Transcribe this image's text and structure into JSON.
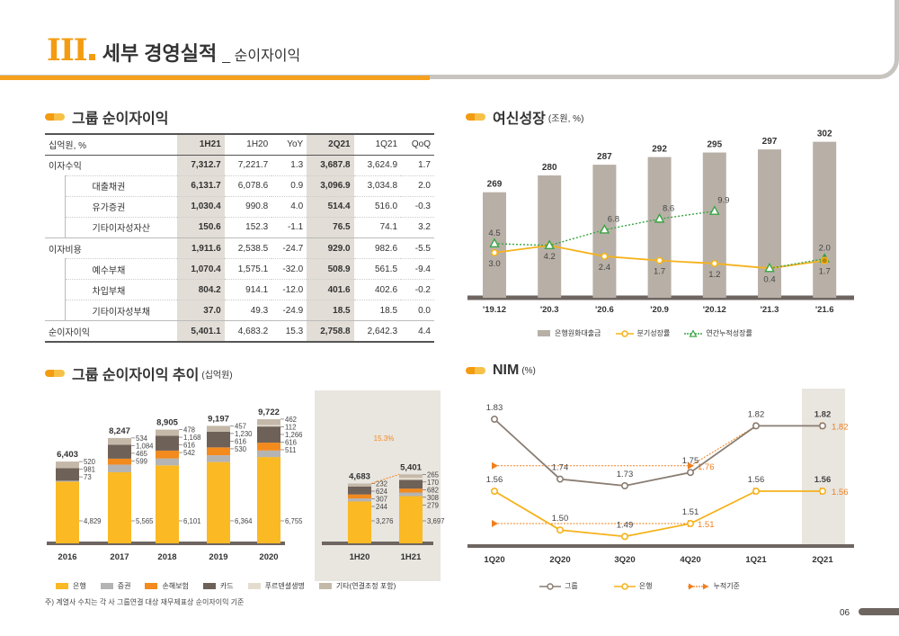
{
  "header": {
    "roman": "III",
    "title": "세부 경영실적",
    "subtitle": "_ 순이자이익"
  },
  "sections": {
    "group_nii": {
      "title": "그룹 순이자이익"
    },
    "loan_growth": {
      "title": "여신성장",
      "unit": "(조원, %)"
    },
    "nii_trend": {
      "title": "그룹 순이자이익 추이",
      "unit": "(십억원)"
    },
    "nim": {
      "title": "NIM",
      "unit": "(%)"
    }
  },
  "nii_table": {
    "unit": "십억원, %",
    "columns": [
      "1H21",
      "1H20",
      "YoY",
      "2Q21",
      "1Q21",
      "QoQ"
    ],
    "rows": [
      {
        "label": "이자수익",
        "level": 0,
        "values": [
          "7,312.7",
          "7,221.7",
          "1.3",
          "3,687.8",
          "3,624.9",
          "1.7"
        ]
      },
      {
        "label": "대출채권",
        "level": 1,
        "values": [
          "6,131.7",
          "6,078.6",
          "0.9",
          "3,096.9",
          "3,034.8",
          "2.0"
        ]
      },
      {
        "label": "유가증권",
        "level": 1,
        "values": [
          "1,030.4",
          "990.8",
          "4.0",
          "514.4",
          "516.0",
          "-0.3"
        ]
      },
      {
        "label": "기타이자성자산",
        "level": 1,
        "values": [
          "150.6",
          "152.3",
          "-1.1",
          "76.5",
          "74.1",
          "3.2"
        ]
      },
      {
        "label": "이자비용",
        "level": 0,
        "values": [
          "1,911.6",
          "2,538.5",
          "-24.7",
          "929.0",
          "982.6",
          "-5.5"
        ]
      },
      {
        "label": "예수부채",
        "level": 1,
        "values": [
          "1,070.4",
          "1,575.1",
          "-32.0",
          "508.9",
          "561.5",
          "-9.4"
        ]
      },
      {
        "label": "차입부채",
        "level": 1,
        "values": [
          "804.2",
          "914.1",
          "-12.0",
          "401.6",
          "402.6",
          "-0.2"
        ]
      },
      {
        "label": "기타이자성부채",
        "level": 1,
        "values": [
          "37.0",
          "49.3",
          "-24.9",
          "18.5",
          "18.5",
          "0.0"
        ]
      },
      {
        "label": "순이자이익",
        "level": 0,
        "values": [
          "5,401.1",
          "4,683.2",
          "15.3",
          "2,758.8",
          "2,642.3",
          "4.4"
        ]
      }
    ]
  },
  "chart_data": [
    {
      "id": "loan_growth",
      "type": "bar",
      "categories": [
        "'19.12",
        "'20.3",
        "'20.6",
        "'20.9",
        "'20.12",
        "'21.3",
        "'21.6"
      ],
      "series": [
        {
          "name": "은행원화대출금",
          "type": "bar",
          "color": "#b8b0a7",
          "values": [
            269,
            280,
            287,
            292,
            295,
            297,
            302
          ]
        },
        {
          "name": "분기성장률",
          "type": "line",
          "color": "#f5b21b",
          "values": [
            3.0,
            4.2,
            2.4,
            1.7,
            1.2,
            0.4,
            1.7
          ]
        },
        {
          "name": "연간누적성장률",
          "type": "line",
          "color": "#3aa444",
          "values": [
            4.5,
            4.2,
            6.8,
            8.6,
            9.9,
            0.4,
            2.0
          ]
        }
      ]
    },
    {
      "id": "nii_trend",
      "type": "bar",
      "stacked": true,
      "categories": [
        "2016",
        "2017",
        "2018",
        "2019",
        "2020",
        "1H20",
        "1H21"
      ],
      "totals": [
        "6,403",
        "8,247",
        "8,905",
        "9,197",
        "9,722",
        "4,683",
        "5,401"
      ],
      "series": [
        {
          "name": "은행",
          "color": "#fbb924",
          "values": [
            4829,
            5565,
            6101,
            6364,
            6755,
            3276,
            3697
          ]
        },
        {
          "name": "증권",
          "color": "#b4b4b4",
          "values": [
            73,
            599,
            542,
            530,
            511,
            244,
            279
          ]
        },
        {
          "name": "손해보험",
          "color": "#f28a1e",
          "values": [
            null,
            465,
            616,
            616,
            616,
            307,
            308
          ]
        },
        {
          "name": "카드",
          "color": "#6e6158",
          "values": [
            981,
            1084,
            1168,
            1230,
            1266,
            624,
            682
          ]
        },
        {
          "name": "푸르덴셜생명",
          "color": "#e4ddcf",
          "values": [
            null,
            null,
            null,
            null,
            112,
            null,
            170
          ]
        },
        {
          "name": "기타(연결조정 포함)",
          "color": "#c4b9a9",
          "values": [
            520,
            534,
            478,
            457,
            462,
            232,
            265
          ]
        }
      ],
      "labels": {
        "2016": [
          "520",
          "981",
          "73",
          "4,829"
        ],
        "2017": [
          "534",
          "1,084",
          "465",
          "599",
          "5,565"
        ],
        "2018": [
          "478",
          "1,168",
          "616",
          "542",
          "6,101"
        ],
        "2019": [
          "457",
          "1,230",
          "616",
          "530",
          "6,364"
        ],
        "2020": [
          "462",
          "112",
          "1,266",
          "616",
          "511",
          "6,755"
        ],
        "1H20": [
          "232",
          "624",
          "307",
          "244",
          "3,276"
        ],
        "1H21": [
          "265",
          "170",
          "682",
          "308",
          "279",
          "3,697"
        ]
      },
      "annotation": "15.3%"
    },
    {
      "id": "nim",
      "type": "line",
      "categories": [
        "1Q20",
        "2Q20",
        "3Q20",
        "4Q20",
        "1Q21",
        "2Q21"
      ],
      "series": [
        {
          "name": "그룹",
          "color": "#8a7d72",
          "values": [
            1.83,
            1.74,
            1.73,
            1.75,
            1.82,
            1.82
          ]
        },
        {
          "name": "은행",
          "color": "#f5b21b",
          "values": [
            1.56,
            1.5,
            1.49,
            1.51,
            1.56,
            1.56
          ]
        },
        {
          "name": "누적기준",
          "color": "#f07f1d",
          "group_values": [
            1.76,
            1.76,
            1.76,
            1.76,
            1.82,
            1.82
          ],
          "bank_values": [
            1.51,
            1.51,
            1.51,
            1.51,
            1.56,
            1.56
          ],
          "group_label": "1.76",
          "bank_label": "1.51",
          "group_label_end": "1.82",
          "bank_label_end": "1.56"
        }
      ]
    }
  ],
  "legends": {
    "loan": [
      "은행원화대출금",
      "분기성장률",
      "연간누적성장률"
    ],
    "nii": [
      "은행",
      "증권",
      "손해보험",
      "카드",
      "푸르덴셜생명",
      "기타(연결조정 포함)"
    ],
    "nim": [
      "그룹",
      "은행",
      "누적기준"
    ]
  },
  "colors": {
    "accent": "#f39c12",
    "bank": "#fbb924",
    "card": "#6e6158",
    "highlight": "#e2ddd6"
  },
  "footnote": "주) 계열사 수치는 각 사 그룹연결 대상 재무제표상 순이자이익 기준",
  "page": {
    "number": "06"
  }
}
